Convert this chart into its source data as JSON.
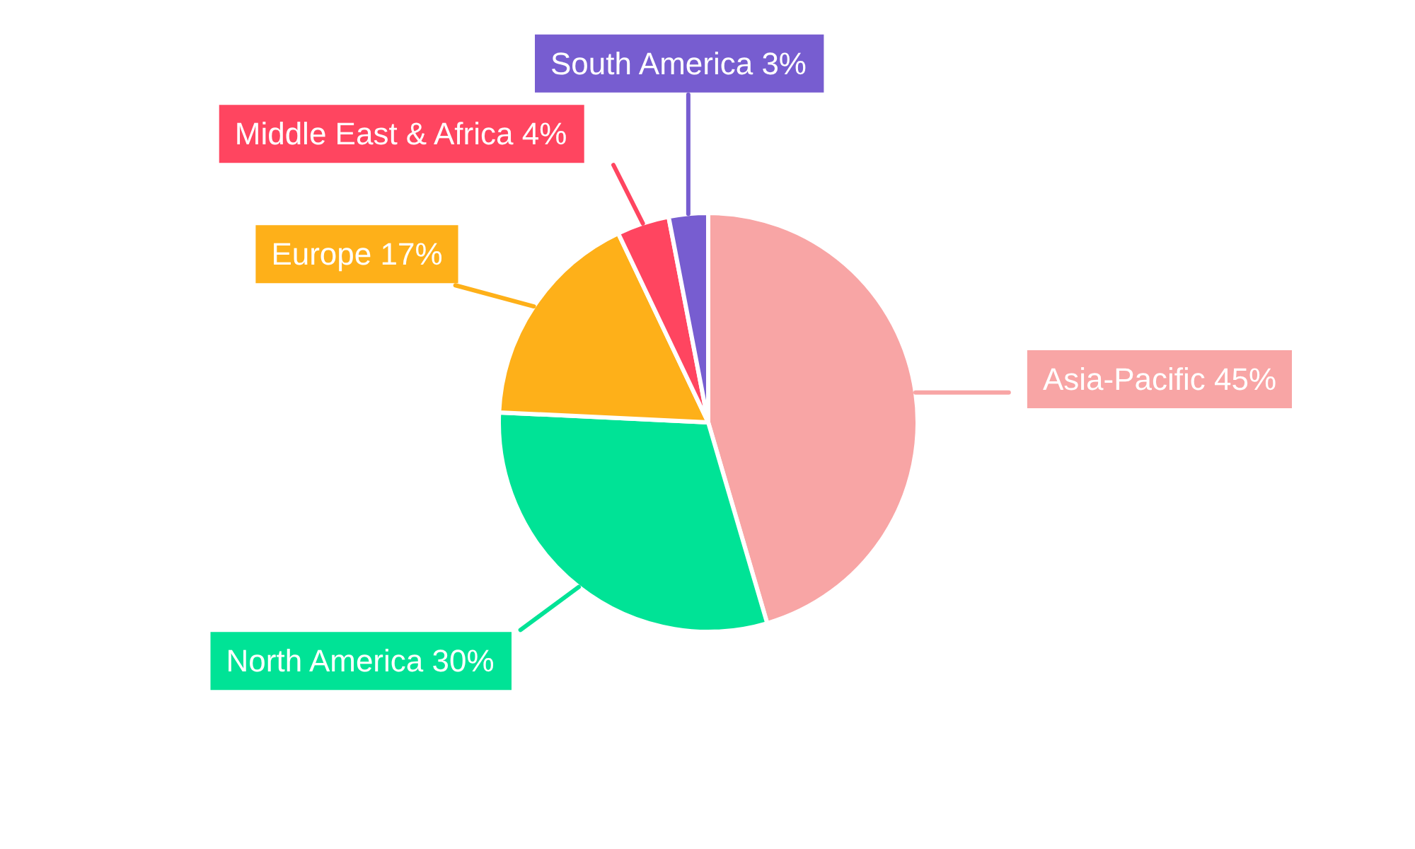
{
  "chart_data": {
    "type": "pie",
    "categories": [
      "Asia-Pacific",
      "North America",
      "Europe",
      "Middle East & Africa",
      "South America"
    ],
    "values": [
      45,
      30,
      17,
      4,
      3
    ],
    "value_labels": [
      "45%",
      "30%",
      "17%",
      "4%",
      "3%"
    ],
    "colors": [
      "#f8a5a5",
      "#00e396",
      "#feb019",
      "#ff4560",
      "#775dd0"
    ]
  }
}
